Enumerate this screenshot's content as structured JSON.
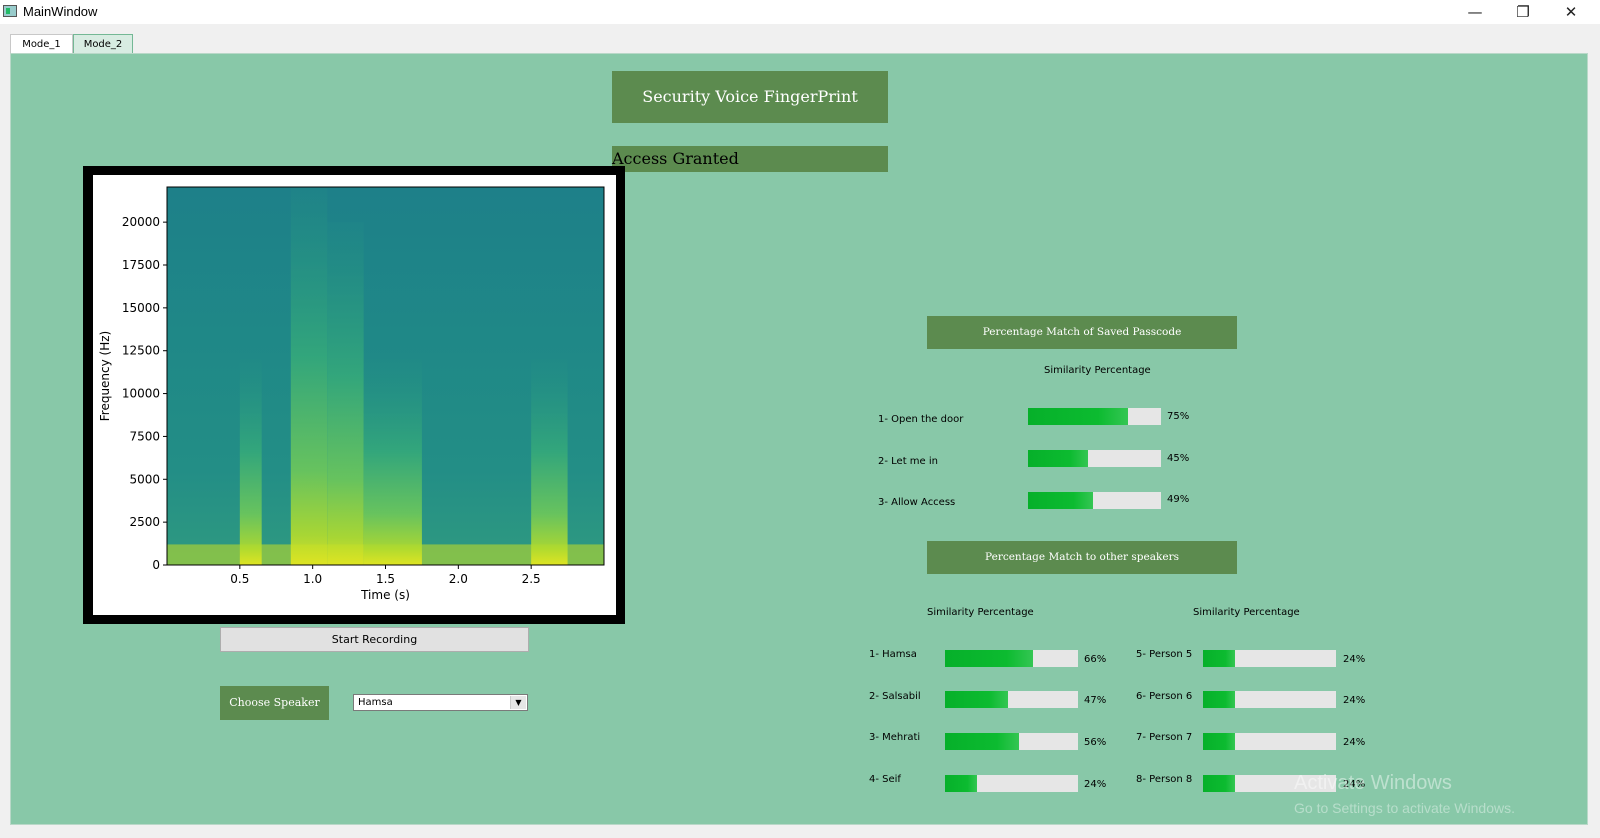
{
  "window": {
    "title": "MainWindow",
    "controls": {
      "minimize": "—",
      "maximize": "❐",
      "close": "✕"
    }
  },
  "tabs": [
    {
      "label": "Mode_1",
      "active": true
    },
    {
      "label": "Mode_2",
      "active": false
    }
  ],
  "header": {
    "title": "Security Voice FingerPrint",
    "status": "Access Granted"
  },
  "passcode_section": {
    "header": "Percentage Match of Saved Passcode",
    "column_title": "Similarity Percentage",
    "rows": [
      {
        "label": "1- Open the door",
        "percent": 75,
        "percent_text": "75%"
      },
      {
        "label": "2- Let me in",
        "percent": 45,
        "percent_text": "45%"
      },
      {
        "label": "3- Allow Access",
        "percent": 49,
        "percent_text": "49%"
      }
    ]
  },
  "speakers_section": {
    "header": "Percentage Match to other speakers",
    "left_column_title": "Similarity Percentage",
    "right_column_title": "Similarity Percentage",
    "left_rows": [
      {
        "label": "1- Hamsa",
        "percent": 66,
        "percent_text": "66%"
      },
      {
        "label": "2- Salsabil",
        "percent": 47,
        "percent_text": "47%"
      },
      {
        "label": "3- Mehrati",
        "percent": 56,
        "percent_text": "56%"
      },
      {
        "label": "4- Seif",
        "percent": 24,
        "percent_text": "24%"
      }
    ],
    "right_rows": [
      {
        "label": "5- Person 5",
        "percent": 24,
        "percent_text": "24%"
      },
      {
        "label": "6- Person 6",
        "percent": 24,
        "percent_text": "24%"
      },
      {
        "label": "7- Person 7",
        "percent": 24,
        "percent_text": "24%"
      },
      {
        "label": "8- Person 8",
        "percent": 24,
        "percent_text": "24%"
      }
    ]
  },
  "controls": {
    "start_recording": "Start Recording",
    "choose_speaker": "Choose Speaker",
    "speaker_selected": "Hamsa"
  },
  "watermark": {
    "title": "Activate Windows",
    "subtitle": "Go to Settings to activate Windows."
  },
  "colors": {
    "panel_bg": "#88c8a8",
    "header_green": "#5c8b4f",
    "bar_fill": "#06b02a",
    "bar_track": "#e6e6e6"
  },
  "chart_data": {
    "type": "heatmap",
    "title": "",
    "xlabel": "Time (s)",
    "ylabel": "Frequency (Hz)",
    "x_ticks": [
      0.5,
      1.0,
      1.5,
      2.0,
      2.5
    ],
    "x_tick_labels": [
      "0.5",
      "1.0",
      "1.5",
      "2.0",
      "2.5"
    ],
    "y_ticks": [
      0,
      2500,
      5000,
      7500,
      10000,
      12500,
      15000,
      17500,
      20000
    ],
    "y_tick_labels": [
      "0",
      "2500",
      "5000",
      "7500",
      "10000",
      "12500",
      "15000",
      "17500",
      "20000"
    ],
    "xlim": [
      0.0,
      3.0
    ],
    "ylim": [
      0,
      22050
    ],
    "colormap": "viridis",
    "energy_segments": [
      {
        "t_start": 0.5,
        "t_end": 0.65,
        "max_freq": 12000
      },
      {
        "t_start": 0.85,
        "t_end": 1.1,
        "max_freq": 22000
      },
      {
        "t_start": 1.1,
        "t_end": 1.35,
        "max_freq": 20000
      },
      {
        "t_start": 1.35,
        "t_end": 1.75,
        "max_freq": 12000
      },
      {
        "t_start": 2.5,
        "t_end": 2.75,
        "max_freq": 12000
      }
    ]
  }
}
